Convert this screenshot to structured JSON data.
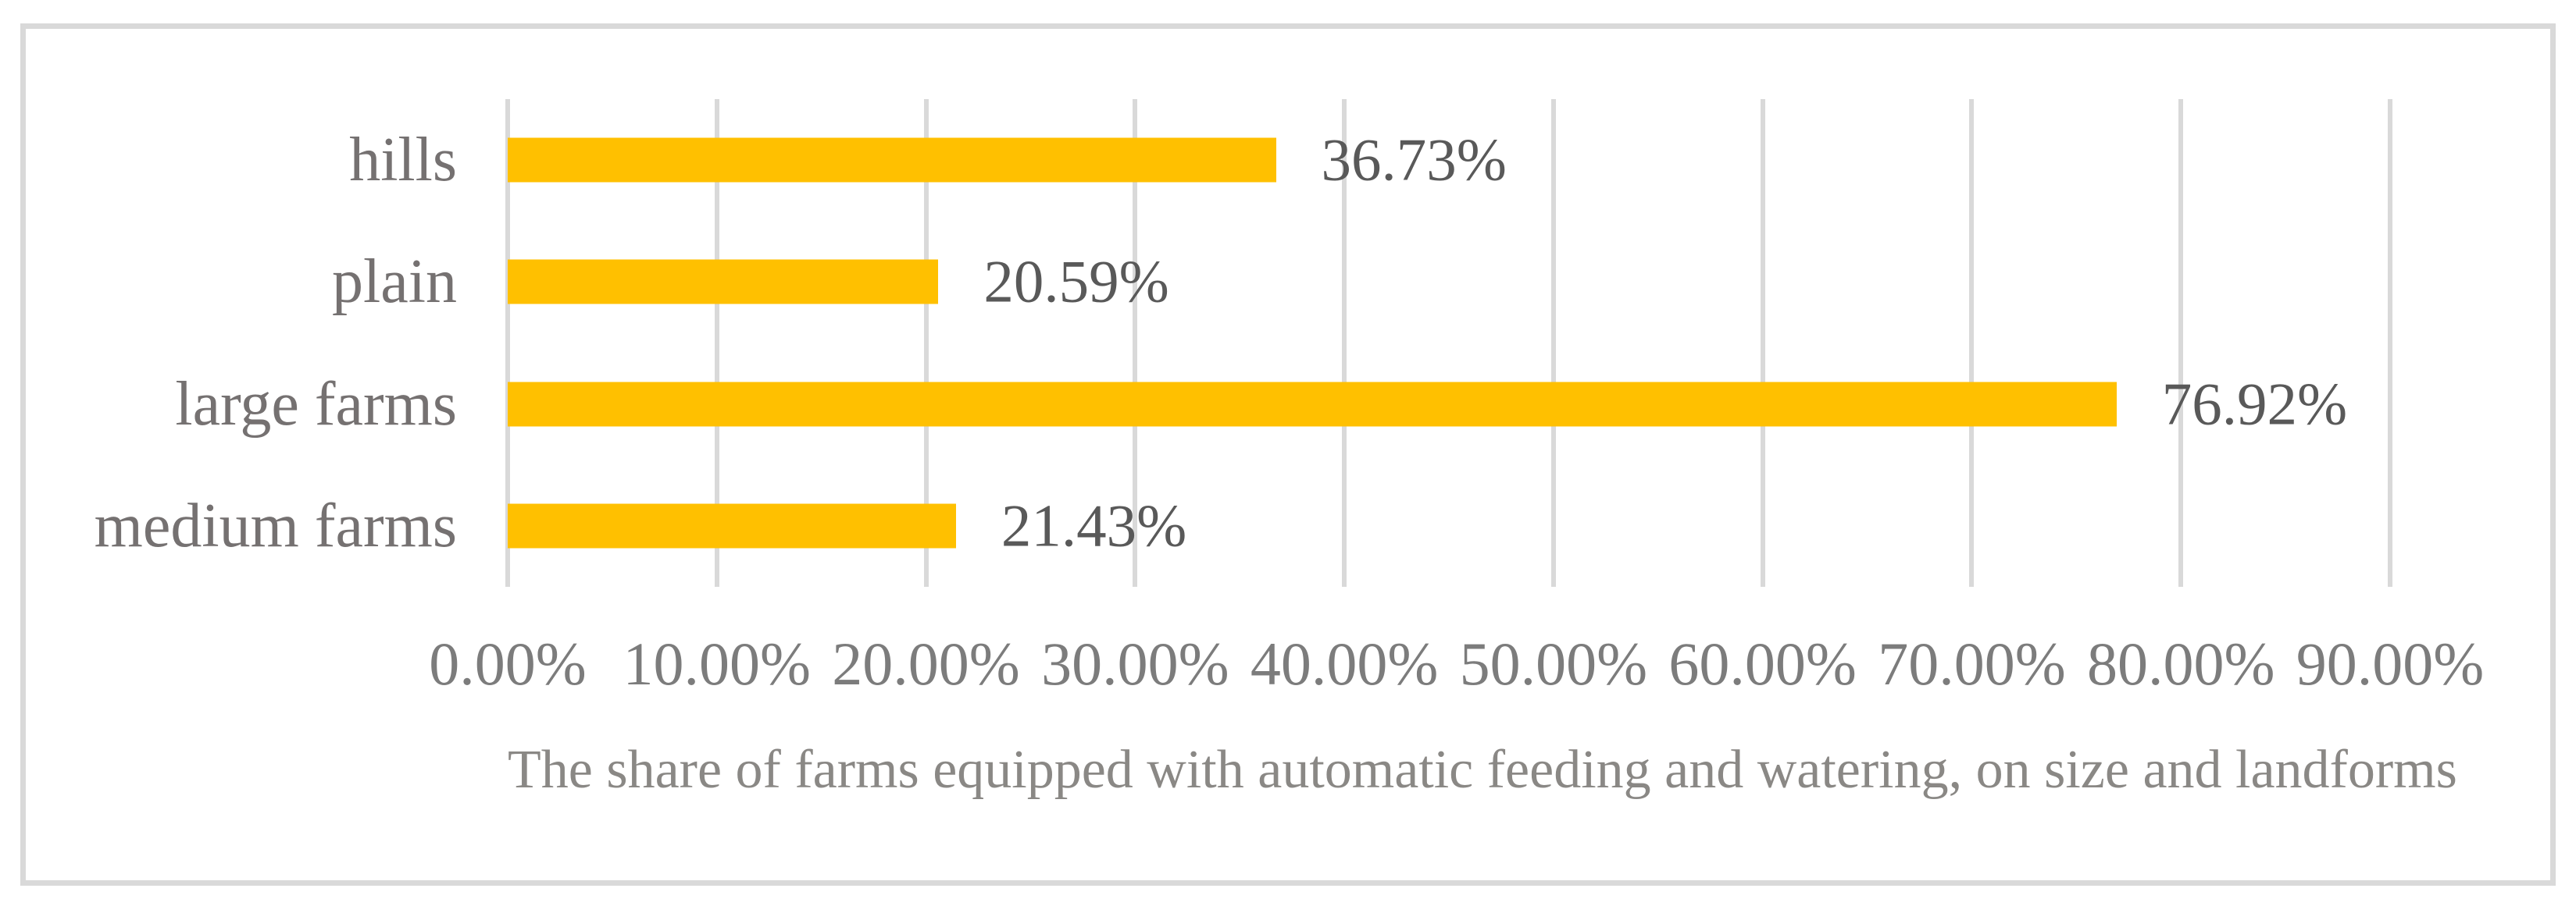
{
  "chart_data": {
    "type": "bar",
    "orientation": "horizontal",
    "title": "The share of farms equipped with automatic feeding and watering, on size and landforms",
    "xlabel": "",
    "ylabel": "",
    "categories": [
      "hills",
      "plain",
      "large farms",
      "medium farms"
    ],
    "values": [
      36.73,
      20.59,
      76.92,
      21.43
    ],
    "value_labels": [
      "36.73%",
      "20.59%",
      "76.92%",
      "21.43%"
    ],
    "xlim": [
      0,
      90
    ],
    "x_tick_step": 10,
    "x_tick_labels": [
      "0.00%",
      "10.00%",
      "20.00%",
      "30.00%",
      "40.00%",
      "50.00%",
      "60.00%",
      "70.00%",
      "80.00%",
      "90.00%"
    ],
    "grid": "vertical-gridlines-on",
    "legend": "none",
    "colors": {
      "bar": "#FFC000",
      "gridline": "#D9D9D9",
      "frame_border": "#D9D9D9",
      "category_label": "#757171",
      "tick_label": "#7C7C7C",
      "value_label": "#595959",
      "title": "#8A8885",
      "background": "#FFFFFF"
    }
  }
}
